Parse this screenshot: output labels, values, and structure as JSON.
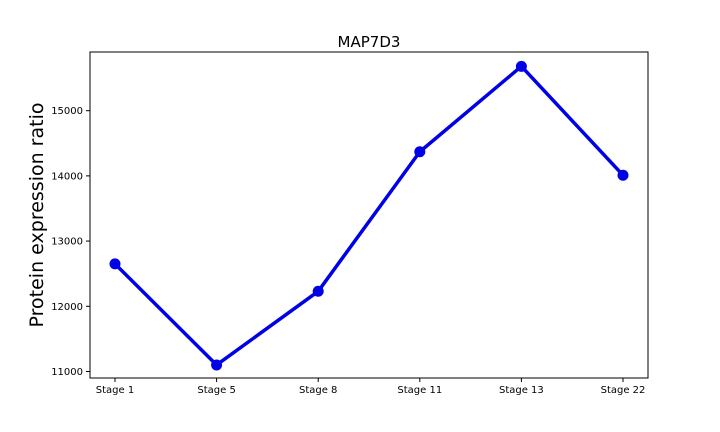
{
  "chart_data": {
    "type": "line",
    "title": "MAP7D3",
    "xlabel": "",
    "ylabel": "Protein expression ratio",
    "categories": [
      "Stage 1",
      "Stage 5",
      "Stage 8",
      "Stage 11",
      "Stage 13",
      "Stage 22"
    ],
    "series": [
      {
        "values": [
          12650,
          11100,
          12230,
          14370,
          15680,
          14010
        ]
      }
    ],
    "ylim": [
      10900,
      15900
    ],
    "yticks": [
      11000,
      12000,
      13000,
      14000,
      15000
    ],
    "grid": false,
    "color": "#0000e6"
  }
}
